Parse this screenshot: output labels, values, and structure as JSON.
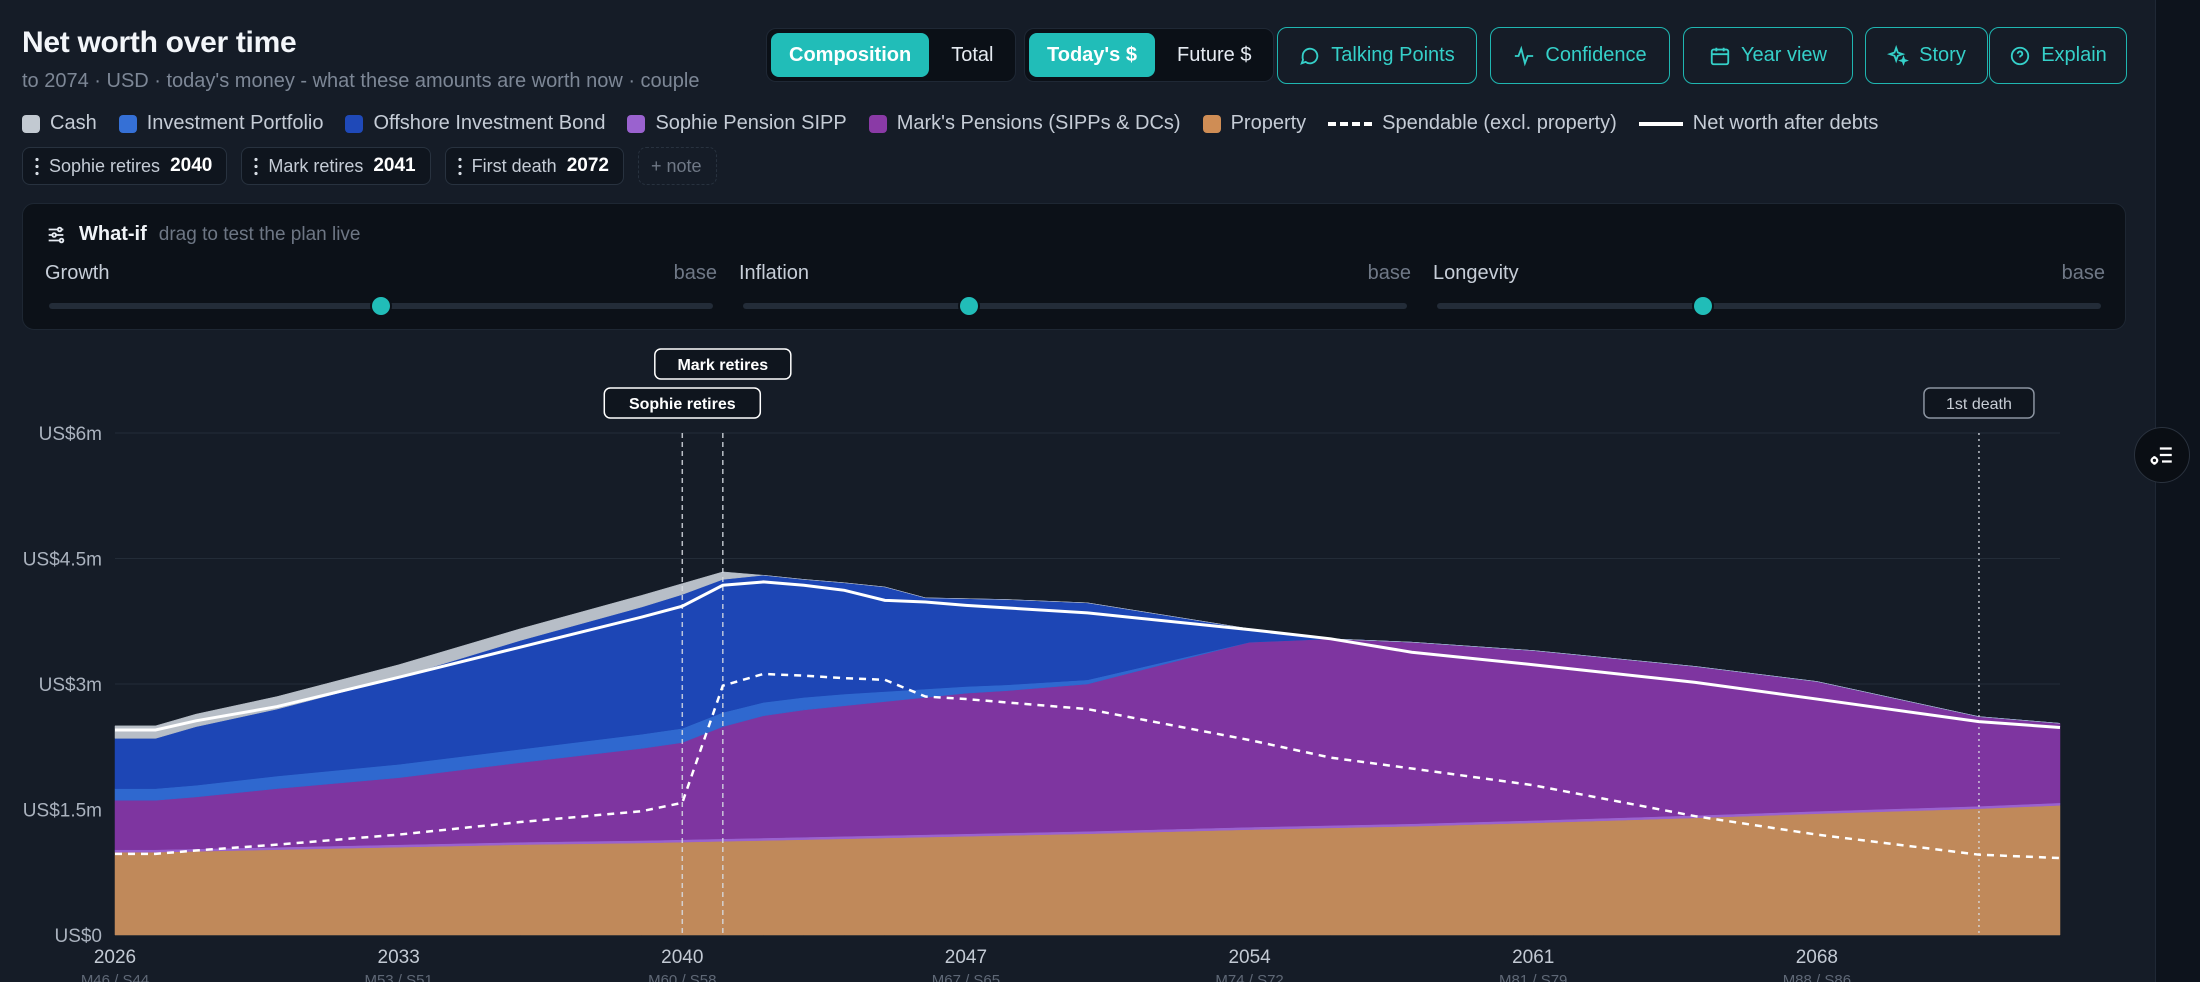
{
  "header": {
    "title": "Net worth over time",
    "subtitle": "to 2074 · USD · today's money - what these amounts are worth now · couple"
  },
  "view_toggle": {
    "options": [
      "Composition",
      "Total"
    ],
    "selected": "Composition"
  },
  "money_toggle": {
    "options": [
      "Today's $",
      "Future $"
    ],
    "selected": "Today's $"
  },
  "toolbar": {
    "buttons": [
      {
        "label": "Talking Points",
        "icon": "chat-bubble-icon"
      },
      {
        "label": "Confidence",
        "icon": "pulse-icon"
      },
      {
        "label": "Year view",
        "icon": "calendar-icon"
      },
      {
        "label": "Story",
        "icon": "sparkle-icon"
      },
      {
        "label": "Explain",
        "icon": "help-circle-icon"
      }
    ],
    "accent_color": "#21bdb8"
  },
  "legend": {
    "items": [
      {
        "label": "Cash",
        "color": "#c2c9d1",
        "kind": "swatch"
      },
      {
        "label": "Investment Portfolio",
        "color": "#3570d6",
        "kind": "swatch"
      },
      {
        "label": "Offshore Investment Bond",
        "color": "#1f49b8",
        "kind": "swatch"
      },
      {
        "label": "Sophie Pension SIPP",
        "color": "#9a62cf",
        "kind": "swatch"
      },
      {
        "label": "Mark's Pensions (SIPPs & DCs)",
        "color": "#8a3aa6",
        "kind": "swatch"
      },
      {
        "label": "Property",
        "color": "#cf8d55",
        "kind": "swatch"
      },
      {
        "label": "Spendable (excl. property)",
        "color": "#ffffff",
        "kind": "dashed-line"
      },
      {
        "label": "Net worth after debts",
        "color": "#ffffff",
        "kind": "solid-line"
      }
    ]
  },
  "milestones": {
    "chips": [
      {
        "label": "Sophie retires",
        "year": "2040"
      },
      {
        "label": "Mark retires",
        "year": "2041"
      },
      {
        "label": "First death",
        "year": "2072"
      }
    ],
    "add_note_label": "+ note"
  },
  "whatif": {
    "title": "What-if",
    "hint": "drag to test the plan live",
    "sliders": [
      {
        "label": "Growth",
        "value_label": "base",
        "position": 0.5
      },
      {
        "label": "Inflation",
        "value_label": "base",
        "position": 0.34
      },
      {
        "label": "Longevity",
        "value_label": "base",
        "position": 0.4
      }
    ]
  },
  "chart_data": {
    "type": "area",
    "stacked": true,
    "x_start": 2026,
    "x_end": 2074,
    "xticks": [
      {
        "year": 2026,
        "sub": "M46 / S44"
      },
      {
        "year": 2033,
        "sub": "M53 / S51"
      },
      {
        "year": 2040,
        "sub": "M60 / S58"
      },
      {
        "year": 2047,
        "sub": "M67 / S65"
      },
      {
        "year": 2054,
        "sub": "M74 / S72"
      },
      {
        "year": 2061,
        "sub": "M81 / S79"
      },
      {
        "year": 2068,
        "sub": "M88 / S86"
      }
    ],
    "yticks": [
      {
        "value": 0,
        "label": "US$0"
      },
      {
        "value": 1.5,
        "label": "US$1.5m"
      },
      {
        "value": 3,
        "label": "US$3m"
      },
      {
        "value": 4.5,
        "label": "US$4.5m"
      },
      {
        "value": 6,
        "label": "US$6m"
      }
    ],
    "ylim": [
      0,
      6
    ],
    "y_units": "US$ millions",
    "grid": true,
    "x": [
      2026,
      2027,
      2028,
      2030,
      2033,
      2036,
      2039,
      2040,
      2041,
      2042,
      2043,
      2044,
      2045,
      2046,
      2047,
      2048,
      2050,
      2054,
      2056,
      2058,
      2061,
      2065,
      2068,
      2072,
      2074
    ],
    "series": [
      {
        "name": "Property",
        "color": "#c0895a",
        "values": [
          0.99,
          0.99,
          1.0,
          1.02,
          1.05,
          1.08,
          1.1,
          1.11,
          1.12,
          1.13,
          1.14,
          1.15,
          1.16,
          1.17,
          1.18,
          1.19,
          1.21,
          1.26,
          1.28,
          1.3,
          1.34,
          1.4,
          1.45,
          1.51,
          1.55
        ]
      },
      {
        "name": "Sophie Pension SIPP",
        "color": "#9a62cf",
        "values": [
          0.03,
          0.03,
          0.03,
          0.03,
          0.03,
          0.03,
          0.03,
          0.03,
          0.03,
          0.03,
          0.03,
          0.03,
          0.03,
          0.03,
          0.03,
          0.03,
          0.03,
          0.03,
          0.03,
          0.03,
          0.03,
          0.03,
          0.03,
          0.03,
          0.03
        ]
      },
      {
        "name": "Mark's Pensions (SIPPs & DCs)",
        "color": "#7e35a0",
        "values": [
          0.59,
          0.59,
          0.62,
          0.7,
          0.8,
          0.95,
          1.1,
          1.16,
          1.34,
          1.46,
          1.52,
          1.56,
          1.6,
          1.64,
          1.68,
          1.7,
          1.76,
          2.21,
          2.23,
          2.17,
          2.03,
          1.78,
          1.55,
          1.07,
          0.95
        ]
      },
      {
        "name": "Investment Portfolio",
        "color": "#2f68cf",
        "values": [
          0.14,
          0.14,
          0.14,
          0.15,
          0.16,
          0.16,
          0.17,
          0.17,
          0.17,
          0.16,
          0.15,
          0.14,
          0.12,
          0.1,
          0.08,
          0.07,
          0.05,
          0.0,
          0.0,
          0.0,
          0.0,
          0.0,
          0.0,
          0.0,
          0.0
        ]
      },
      {
        "name": "Offshore Investment Bond",
        "color": "#1d46b5",
        "values": [
          0.6,
          0.6,
          0.7,
          0.8,
          1.04,
          1.3,
          1.52,
          1.6,
          1.59,
          1.52,
          1.41,
          1.33,
          1.25,
          1.09,
          1.05,
          1.02,
          0.92,
          0.16,
          0.0,
          0.0,
          0.0,
          0.0,
          0.0,
          0.0,
          0.0
        ]
      },
      {
        "name": "Cash",
        "color": "#b7bec7",
        "values": [
          0.15,
          0.15,
          0.15,
          0.15,
          0.15,
          0.14,
          0.14,
          0.13,
          0.09,
          0.0,
          0.0,
          0.0,
          0.0,
          0.0,
          0.0,
          0.0,
          0.0,
          0.0,
          0.0,
          0.0,
          0.0,
          0.0,
          0.0,
          0.0,
          0.0
        ]
      }
    ],
    "net_worth_after_debts": [
      2.45,
      2.45,
      2.56,
      2.73,
      3.08,
      3.44,
      3.8,
      3.93,
      4.18,
      4.22,
      4.18,
      4.12,
      4.0,
      3.98,
      3.94,
      3.91,
      3.85,
      3.65,
      3.54,
      3.38,
      3.23,
      3.02,
      2.82,
      2.55,
      2.48
    ],
    "spendable_excl_property": [
      0.97,
      0.97,
      1.01,
      1.08,
      1.2,
      1.35,
      1.48,
      1.58,
      2.98,
      3.12,
      3.1,
      3.07,
      3.05,
      2.85,
      2.82,
      2.78,
      2.7,
      2.33,
      2.12,
      1.99,
      1.79,
      1.42,
      1.2,
      0.96,
      0.92
    ],
    "markers": [
      {
        "label": "Sophie retires",
        "year": 2040
      },
      {
        "label": "Mark retires",
        "year": 2041
      },
      {
        "label": "1st death",
        "year": 2072
      }
    ]
  }
}
